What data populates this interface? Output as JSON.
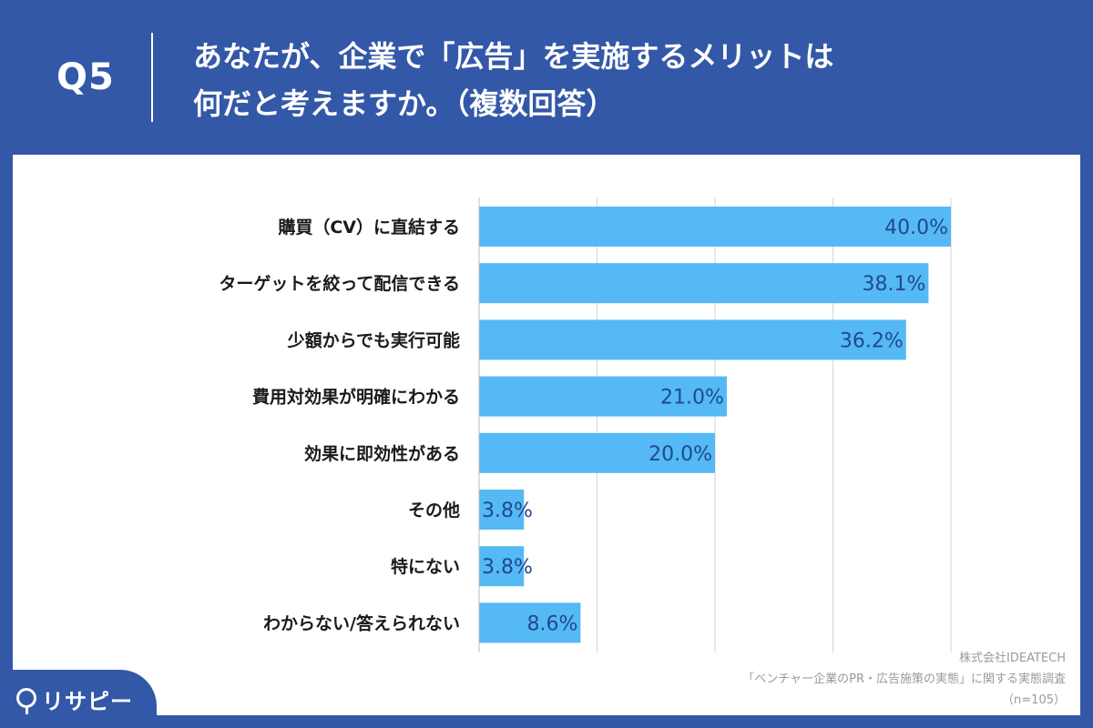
{
  "header": {
    "q_label": "Q5",
    "title_line1": "あなたが、企業で「広告」を実施するメリットは",
    "title_line2": "何だと考えますか。（複数回答）"
  },
  "chart_data": {
    "type": "bar",
    "orientation": "horizontal",
    "categories": [
      "購買（CV）に直結する",
      "ターゲットを絞って配信できる",
      "少額からでも実行可能",
      "費用対効果が明確にわかる",
      "効果に即効性がある",
      "その他",
      "特にない",
      "わからない/答えられない"
    ],
    "values": [
      40.0,
      38.1,
      36.2,
      21.0,
      20.0,
      3.8,
      3.8,
      8.6
    ],
    "value_labels": [
      "40.0%",
      "38.1%",
      "36.2%",
      "21.0%",
      "20.0%",
      "3.8%",
      "3.8%",
      "8.6%"
    ],
    "xlim": [
      0,
      40
    ],
    "grid": true,
    "bar_color": "#55b9f5",
    "value_label_color": "#1f4a8c"
  },
  "footer": {
    "credit_line1": "株式会社IDEATECH",
    "credit_line2": "「ベンチャー企業のPR・広告施策の実態」に関する実態調査",
    "credit_line3": "（n=105）",
    "logo_text": "リサピー"
  },
  "colors": {
    "background": "#3358a8",
    "panel": "#ffffff"
  }
}
